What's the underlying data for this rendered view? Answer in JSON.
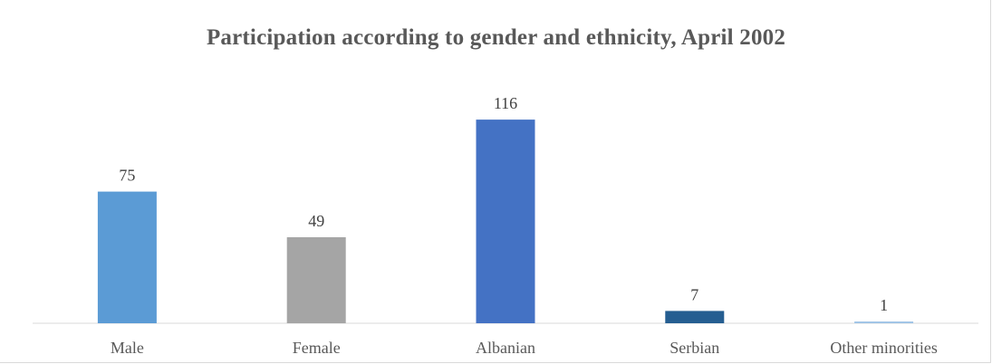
{
  "chart_data": {
    "type": "bar",
    "title": "Participation  according to gender and ethnicity, April 2002",
    "categories": [
      "Male",
      "Female",
      "Albanian",
      "Serbian",
      "Other minorities"
    ],
    "values": [
      75,
      49,
      116,
      7,
      1
    ],
    "colors": [
      "#5b9bd5",
      "#a5a5a5",
      "#4472c4",
      "#255e91",
      "#9dc3e6"
    ],
    "data_labels": [
      "75",
      "49",
      "116",
      "7",
      "1"
    ],
    "xlabel": "",
    "ylabel": "",
    "ylim": [
      0,
      130
    ],
    "grid": false,
    "legend": "none"
  }
}
